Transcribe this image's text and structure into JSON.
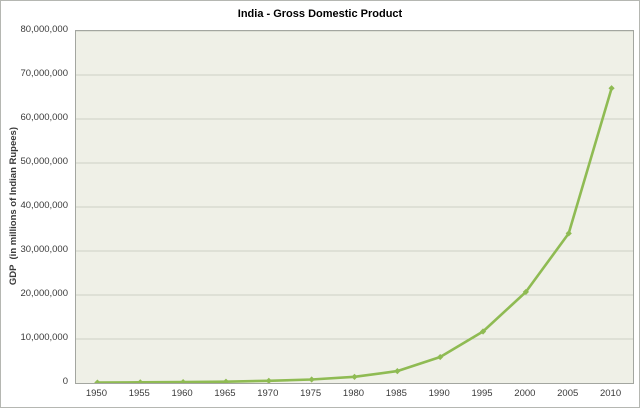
{
  "window": {
    "title": "India - Gross Domestic Product"
  },
  "chart_data": {
    "type": "line",
    "title": "India - Gross Domestic Product",
    "xlabel": "",
    "ylabel": "GDP  (in millions of Indian Rupees)",
    "categories": [
      "1950",
      "1955",
      "1960",
      "1965",
      "1970",
      "1975",
      "1980",
      "1985",
      "1990",
      "1995",
      "2000",
      "2005",
      "2010"
    ],
    "series": [
      {
        "name": "GDP",
        "values": [
          100000,
          150000,
          200000,
          300000,
          500000,
          800000,
          1400000,
          2700000,
          5900000,
          11700000,
          20700000,
          34000000,
          67000000
        ]
      }
    ],
    "ylim": [
      0,
      80000000
    ],
    "y_tick_step": 10000000,
    "y_tick_labels": [
      "0",
      "10,000,000",
      "20,000,000",
      "30,000,000",
      "40,000,000",
      "50,000,000",
      "60,000,000",
      "70,000,000",
      "80,000,000"
    ],
    "grid": "horizontal",
    "legend": "none",
    "marker": "diamond",
    "colors": {
      "line": "#8fbb53",
      "plot_bg": "#eff0e7",
      "gridline": "#cdd0c6",
      "plot_border": "#a3a6a0",
      "axis_text": "#3a3a3a",
      "title_text": "#000000",
      "outer_border": "#b5b7b2",
      "page_bg": "#ffffff"
    }
  }
}
